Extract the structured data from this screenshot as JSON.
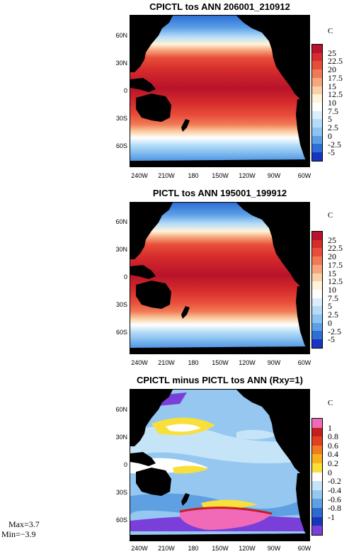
{
  "panels": [
    {
      "title": "CPICTL tos ANN 206001_210912",
      "unit": "C",
      "colorbar_labels": [
        "25",
        "22.5",
        "20",
        "17.5",
        "15",
        "12.5",
        "10",
        "7.5",
        "5",
        "2.5",
        "0",
        "-2.5",
        "-5"
      ],
      "colorbar_colors": [
        "#b8132a",
        "#d62c2c",
        "#e84d3a",
        "#f07a55",
        "#f6a57c",
        "#fbd0a6",
        "#fff4d8",
        "#ffffff",
        "#dbeefc",
        "#b4dcf8",
        "#8cc3f1",
        "#5c9fe6",
        "#2d6fd4",
        "#1735c2"
      ],
      "map_theme": "sst-clim"
    },
    {
      "title": "PICTL tos ANN 195001_199912",
      "unit": "C",
      "colorbar_labels": [
        "25",
        "22.5",
        "20",
        "17.5",
        "15",
        "12.5",
        "10",
        "7.5",
        "5",
        "2.5",
        "0",
        "-2.5",
        "-5"
      ],
      "colorbar_colors": [
        "#b8132a",
        "#d62c2c",
        "#e84d3a",
        "#f07a55",
        "#f6a57c",
        "#fbd0a6",
        "#fff4d8",
        "#ffffff",
        "#dbeefc",
        "#b4dcf8",
        "#8cc3f1",
        "#5c9fe6",
        "#2d6fd4",
        "#1735c2"
      ],
      "map_theme": "sst-clim"
    },
    {
      "title": "CPICTL minus PICTL tos ANN (Rxy=1)",
      "unit": "C",
      "colorbar_labels": [
        "1",
        "0.8",
        "0.6",
        "0.4",
        "0.2",
        "0",
        "-0.2",
        "-0.4",
        "-0.6",
        "-0.8",
        "-1"
      ],
      "colorbar_colors": [
        "#f06ab8",
        "#c41f1f",
        "#e24020",
        "#f07a20",
        "#f7b11c",
        "#f9df3a",
        "#ffffff",
        "#c6e4f8",
        "#95c7f1",
        "#5fa0e2",
        "#2d6ad0",
        "#1736b8",
        "#7a3fd8"
      ],
      "map_theme": "sst-diff"
    }
  ],
  "lat_labels": [
    "60N",
    "30N",
    "0",
    "30S",
    "60S"
  ],
  "lon_labels": [
    "240W",
    "210W",
    "180",
    "150W",
    "120W",
    "90W",
    "60W"
  ],
  "stats": {
    "max": "Max=3.7",
    "min": "Min=−3.9"
  }
}
